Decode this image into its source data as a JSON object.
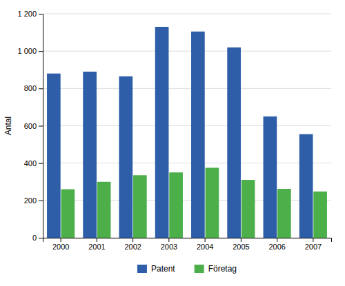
{
  "chart_data": {
    "type": "bar",
    "ylabel": "Antal",
    "categories": [
      "2000",
      "2001",
      "2002",
      "2003",
      "2004",
      "2005",
      "2006",
      "2007"
    ],
    "series": [
      {
        "name": "Patent",
        "color": "#2E5EA8",
        "values": [
          880,
          890,
          865,
          1130,
          1105,
          1020,
          650,
          555
        ]
      },
      {
        "name": "Företag",
        "color": "#4DAF4A",
        "values": [
          260,
          300,
          335,
          350,
          375,
          310,
          262,
          248
        ]
      }
    ],
    "ylim": [
      0,
      1200
    ],
    "yticks": [
      0,
      200,
      400,
      600,
      800,
      {
        "value": 1000,
        "label": "1 000"
      },
      {
        "value": 1200,
        "label": "1 200"
      }
    ],
    "grid": true,
    "legend": "bottom"
  }
}
